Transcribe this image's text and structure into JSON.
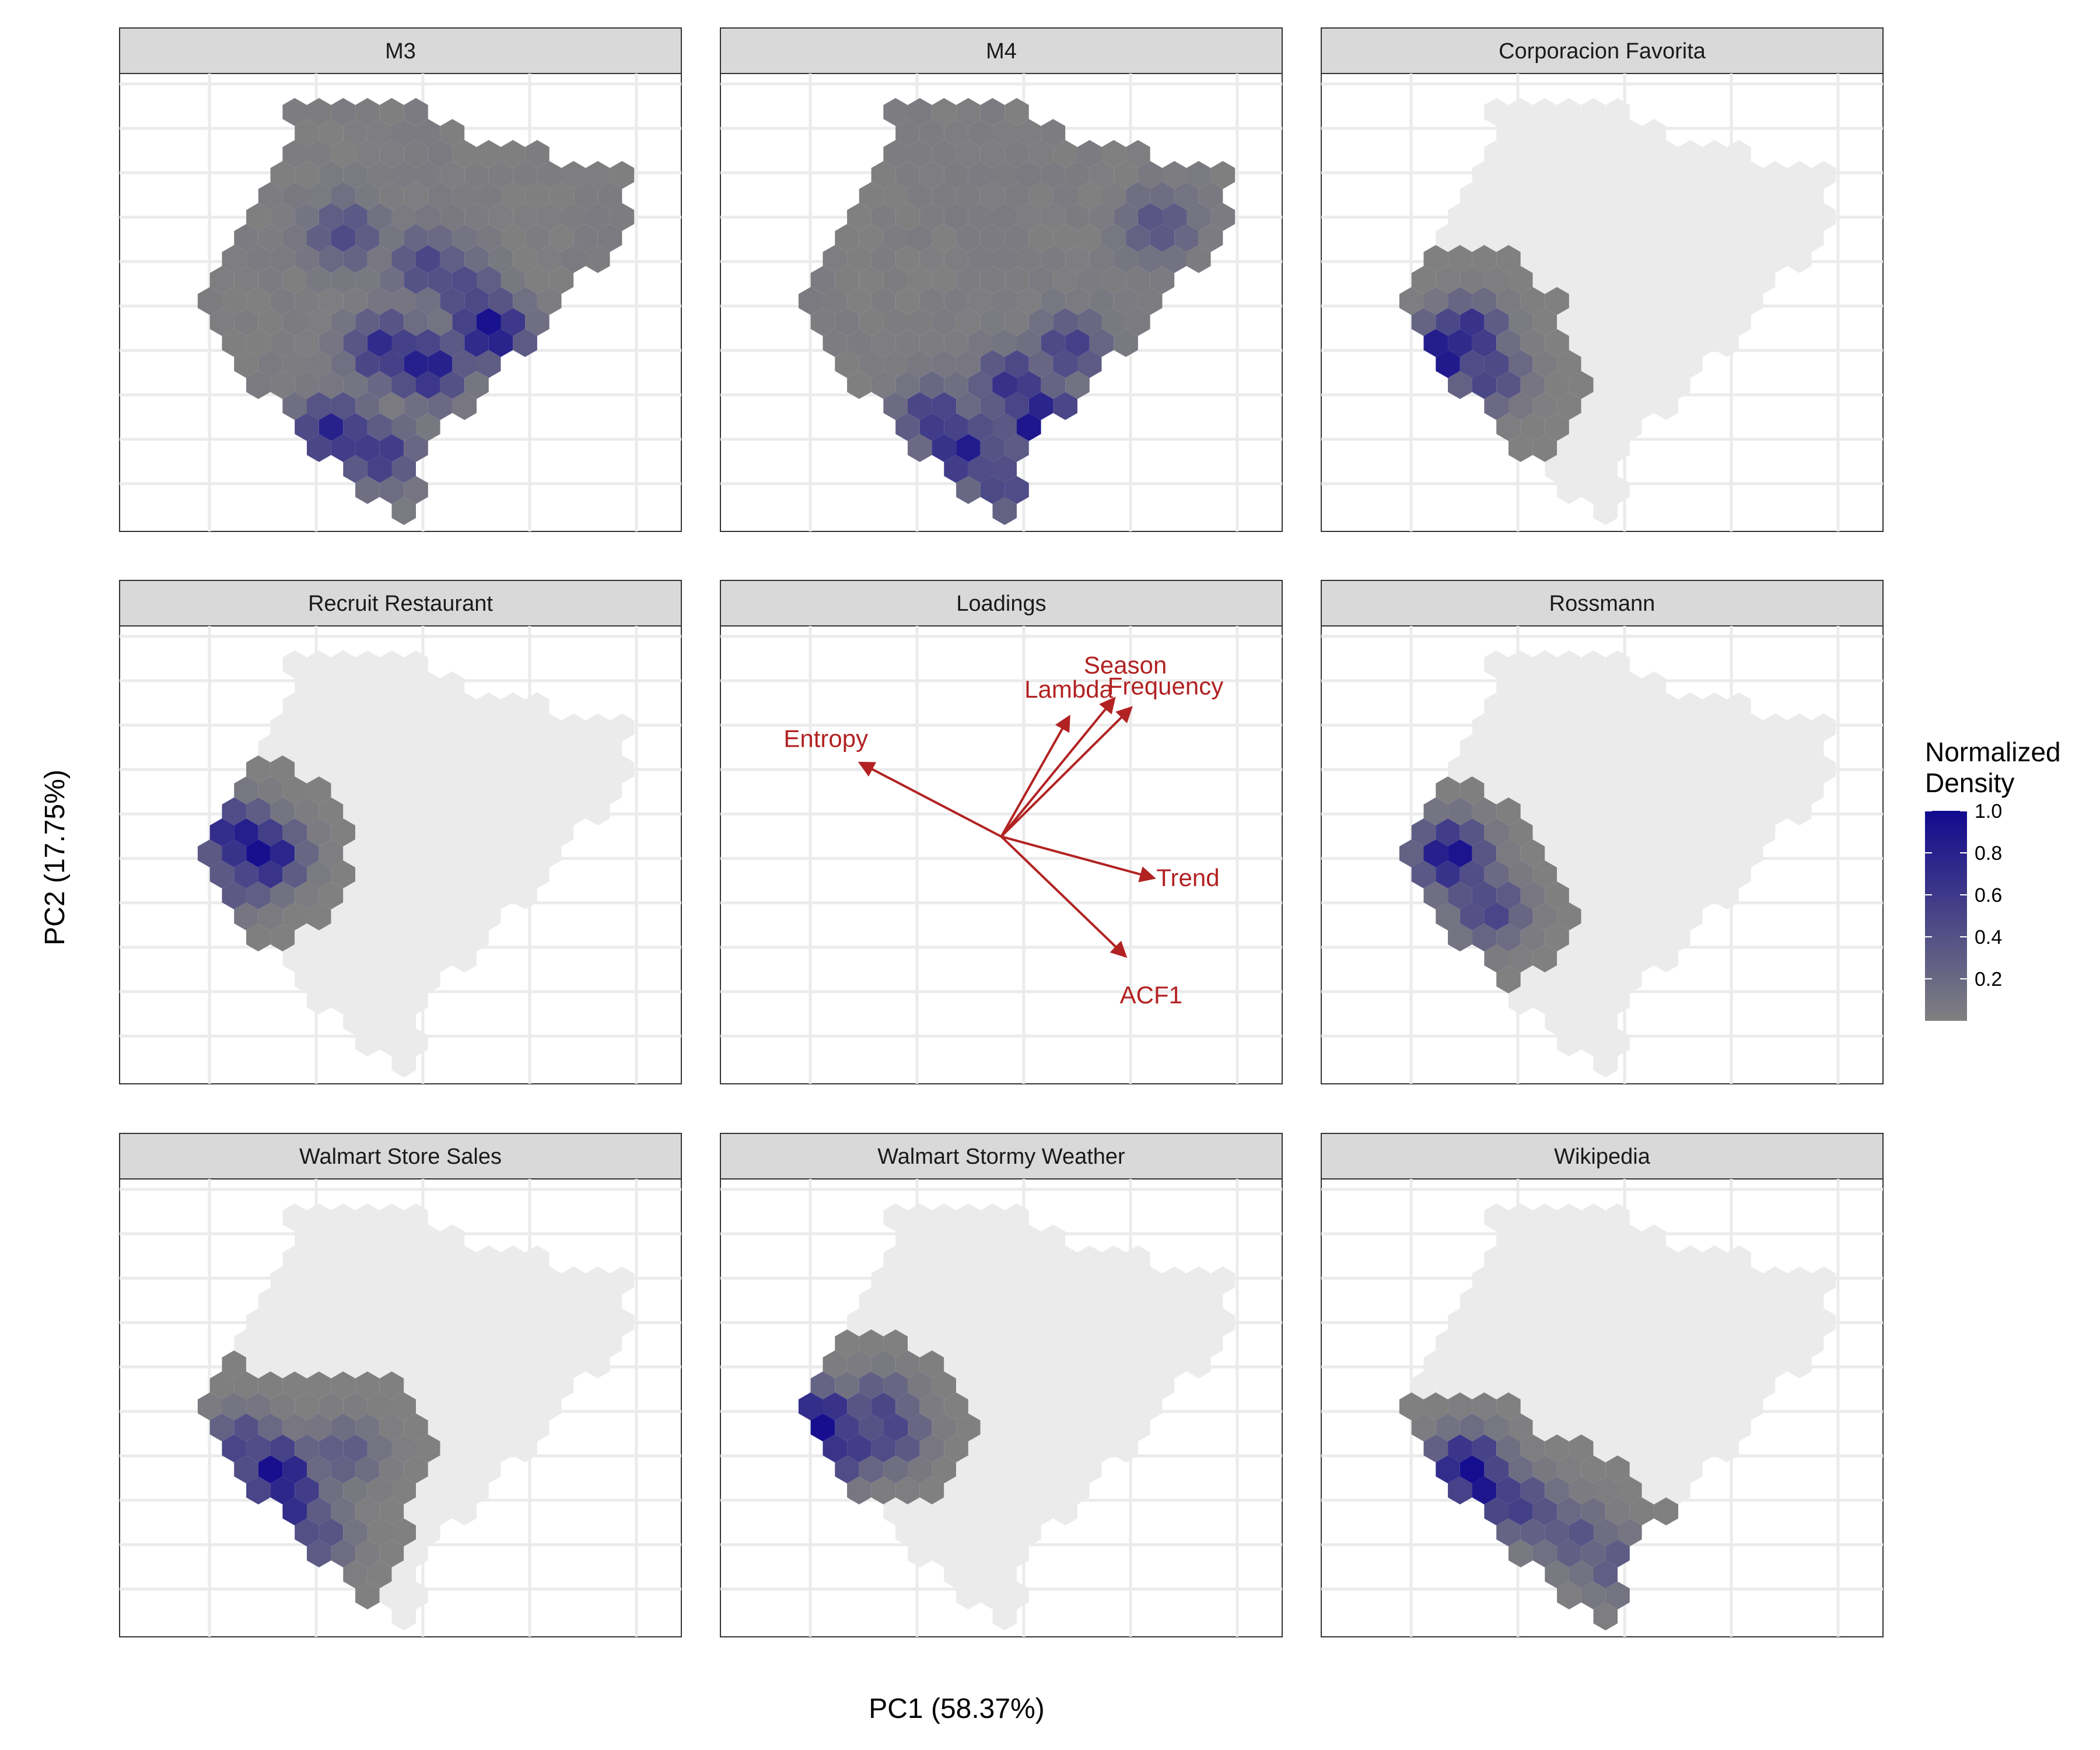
{
  "colors": {
    "grid": "#ebebeb",
    "background_hex": "#ebebeb",
    "low": "#808080",
    "high": "#120a8f",
    "strip": "#d9d9d9",
    "arrow": "#b22222"
  },
  "chart_data": {
    "type": "hexbin",
    "xlabel": "PC1 (58.37%)",
    "ylabel": "PC2 (17.75%)",
    "legend": {
      "title_line1": "Normalized",
      "title_line2": "Density",
      "ticks": [
        "1.0",
        "0.8",
        "0.6",
        "0.4",
        "0.2"
      ],
      "tick_values": [
        1.0,
        0.8,
        0.6,
        0.4,
        0.2
      ],
      "placement": "right"
    },
    "panels": [
      {
        "title": "M3",
        "hot": [
          [
            0.66,
            0.56,
            1.0
          ],
          [
            0.55,
            0.64,
            0.9
          ],
          [
            0.47,
            0.6,
            0.75
          ],
          [
            0.38,
            0.78,
            0.8
          ],
          [
            0.46,
            0.83,
            0.65
          ],
          [
            0.55,
            0.42,
            0.5
          ],
          [
            0.4,
            0.35,
            0.45
          ],
          [
            0.62,
            0.48,
            0.5
          ]
        ],
        "spread": 0.55
      },
      {
        "title": "M4",
        "hot": [
          [
            0.57,
            0.76,
            1.0
          ],
          [
            0.43,
            0.82,
            0.85
          ],
          [
            0.52,
            0.68,
            0.7
          ],
          [
            0.62,
            0.6,
            0.55
          ],
          [
            0.38,
            0.75,
            0.6
          ],
          [
            0.78,
            0.33,
            0.4
          ],
          [
            0.5,
            0.9,
            0.5
          ]
        ],
        "spread": 0.65
      },
      {
        "title": "Corporacion Favorita",
        "hot": [
          [
            0.22,
            0.61,
            1.0
          ],
          [
            0.26,
            0.57,
            0.8
          ],
          [
            0.3,
            0.66,
            0.55
          ]
        ],
        "spread": 0.55
      },
      {
        "title": "Recruit Restaurant",
        "hot": [
          [
            0.26,
            0.5,
            1.0
          ],
          [
            0.21,
            0.46,
            0.9
          ],
          [
            0.22,
            0.55,
            0.5
          ]
        ],
        "spread": 0.5
      },
      {
        "title": "Loadings",
        "loadings": [
          {
            "name": "Lambda",
            "x": 0.62,
            "y": 0.2
          },
          {
            "name": "Season",
            "x": 0.7,
            "y": 0.16
          },
          {
            "name": "Frequency",
            "x": 0.73,
            "y": 0.18
          },
          {
            "name": "Entropy",
            "x": 0.25,
            "y": 0.3
          },
          {
            "name": "Trend",
            "x": 0.77,
            "y": 0.55
          },
          {
            "name": "ACF1",
            "x": 0.72,
            "y": 0.72
          }
        ],
        "origin": {
          "x": 0.5,
          "y": 0.46
        }
      },
      {
        "title": "Rossmann",
        "hot": [
          [
            0.23,
            0.5,
            1.0
          ],
          [
            0.3,
            0.62,
            0.55
          ],
          [
            0.26,
            0.56,
            0.45
          ]
        ],
        "spread": 0.45
      },
      {
        "title": "Walmart Store Sales",
        "hot": [
          [
            0.28,
            0.64,
            1.0
          ],
          [
            0.3,
            0.7,
            0.85
          ],
          [
            0.22,
            0.58,
            0.55
          ],
          [
            0.35,
            0.78,
            0.45
          ],
          [
            0.4,
            0.6,
            0.35
          ]
        ],
        "spread": 0.5
      },
      {
        "title": "Walmart Stormy Weather",
        "hot": [
          [
            0.18,
            0.53,
            1.0
          ],
          [
            0.22,
            0.59,
            0.7
          ],
          [
            0.3,
            0.56,
            0.55
          ],
          [
            0.28,
            0.5,
            0.5
          ]
        ],
        "spread": 0.45
      },
      {
        "title": "Wikipedia",
        "hot": [
          [
            0.26,
            0.63,
            1.0
          ],
          [
            0.29,
            0.68,
            0.9
          ],
          [
            0.36,
            0.72,
            0.55
          ],
          [
            0.45,
            0.78,
            0.4
          ],
          [
            0.52,
            0.84,
            0.35
          ]
        ],
        "spread": 0.5
      }
    ]
  }
}
